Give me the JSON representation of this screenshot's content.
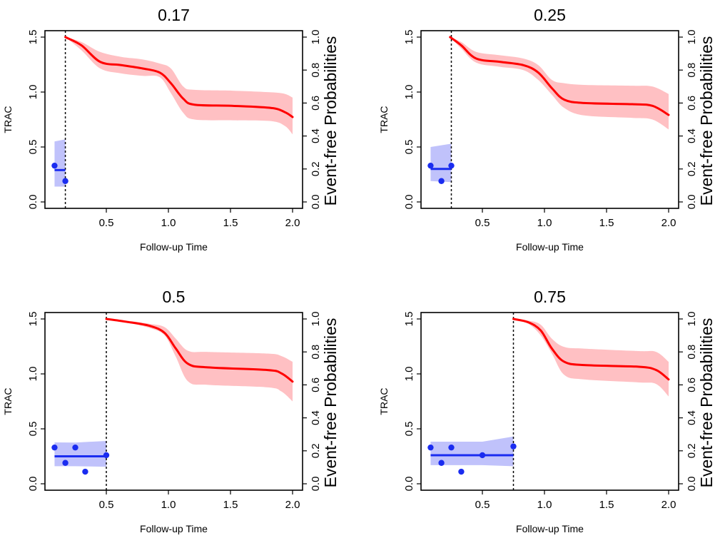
{
  "chart_data": [
    {
      "type": "line",
      "title": "0.17",
      "xlabel": "Follow-up Time",
      "ylabel": "TRAC",
      "y2label": "Event-free Probabilities",
      "xlim": [
        0.0,
        2.08
      ],
      "ylim": [
        0.0,
        1.5
      ],
      "y2lim": [
        0.0,
        1.0
      ],
      "xticks": [
        "0.5",
        "1.0",
        "1.5",
        "2.0"
      ],
      "yticks": [
        "0.0",
        "0.5",
        "1.0",
        "1.5"
      ],
      "y2ticks": [
        "0.0",
        "0.2",
        "0.4",
        "0.6",
        "0.8",
        "1.0"
      ],
      "landmark": 0.17,
      "trac_points": {
        "x": [
          0.083,
          0.17
        ],
        "y": [
          0.33,
          0.19
        ]
      },
      "trac_fit": {
        "x": [
          0.083,
          0.17
        ],
        "y": [
          0.29,
          0.29
        ]
      },
      "trac_band": {
        "x": [
          0.083,
          0.17
        ],
        "lower": [
          0.14,
          0.14
        ],
        "upper": [
          0.55,
          0.57
        ]
      },
      "survival": {
        "x": [
          0.17,
          0.3,
          0.45,
          0.62,
          0.79,
          0.93,
          1.02,
          1.12,
          1.21,
          1.52,
          1.83,
          1.94,
          2.0
        ],
        "y": [
          1.0,
          0.95,
          0.85,
          0.83,
          0.81,
          0.785,
          0.72,
          0.626,
          0.59,
          0.583,
          0.57,
          0.544,
          0.515
        ],
        "upper": [
          1.0,
          0.97,
          0.91,
          0.88,
          0.865,
          0.84,
          0.81,
          0.7,
          0.68,
          0.675,
          0.665,
          0.655,
          0.633
        ],
        "lower": [
          1.0,
          0.92,
          0.81,
          0.78,
          0.765,
          0.757,
          0.66,
          0.54,
          0.5,
          0.495,
          0.49,
          0.46,
          0.41
        ]
      }
    },
    {
      "type": "line",
      "title": "0.25",
      "xlabel": "Follow-up Time",
      "ylabel": "TRAC",
      "y2label": "Event-free Probabilities",
      "xlim": [
        0.0,
        2.08
      ],
      "ylim": [
        0.0,
        1.5
      ],
      "y2lim": [
        0.0,
        1.0
      ],
      "xticks": [
        "0.5",
        "1.0",
        "1.5",
        "2.0"
      ],
      "yticks": [
        "0.0",
        "0.5",
        "1.0",
        "1.5"
      ],
      "y2ticks": [
        "0.0",
        "0.2",
        "0.4",
        "0.6",
        "0.8",
        "1.0"
      ],
      "landmark": 0.25,
      "trac_points": {
        "x": [
          0.083,
          0.17,
          0.25
        ],
        "y": [
          0.33,
          0.19,
          0.33
        ]
      },
      "trac_fit": {
        "x": [
          0.083,
          0.25
        ],
        "y": [
          0.3,
          0.3
        ]
      },
      "trac_band": {
        "x": [
          0.083,
          0.25
        ],
        "lower": [
          0.19,
          0.18
        ],
        "upper": [
          0.5,
          0.53
        ]
      },
      "survival": {
        "x": [
          0.24,
          0.33,
          0.45,
          0.64,
          0.83,
          0.95,
          1.06,
          1.16,
          1.32,
          1.71,
          1.87,
          2.0
        ],
        "y": [
          1.0,
          0.95,
          0.87,
          0.85,
          0.83,
          0.785,
          0.69,
          0.62,
          0.6,
          0.593,
          0.583,
          0.528
        ],
        "upper": [
          1.0,
          0.97,
          0.91,
          0.89,
          0.87,
          0.83,
          0.74,
          0.72,
          0.71,
          0.705,
          0.7,
          0.655
        ],
        "lower": [
          1.0,
          0.93,
          0.845,
          0.82,
          0.8,
          0.74,
          0.65,
          0.57,
          0.525,
          0.51,
          0.5,
          0.44
        ]
      }
    },
    {
      "type": "line",
      "title": "0.5",
      "xlabel": "Follow-up Time",
      "ylabel": "TRAC",
      "y2label": "Event-free Probabilities",
      "xlim": [
        0.0,
        2.08
      ],
      "ylim": [
        0.0,
        1.5
      ],
      "y2lim": [
        0.0,
        1.0
      ],
      "xticks": [
        "0.5",
        "1.0",
        "1.5",
        "2.0"
      ],
      "yticks": [
        "0.0",
        "0.5",
        "1.0",
        "1.5"
      ],
      "y2ticks": [
        "0.0",
        "0.2",
        "0.4",
        "0.6",
        "0.8",
        "1.0"
      ],
      "landmark": 0.5,
      "trac_points": {
        "x": [
          0.083,
          0.17,
          0.25,
          0.33,
          0.5
        ],
        "y": [
          0.33,
          0.19,
          0.33,
          0.11,
          0.26
        ]
      },
      "trac_fit": {
        "x": [
          0.083,
          0.5
        ],
        "y": [
          0.25,
          0.25
        ]
      },
      "trac_band": {
        "x": [
          0.083,
          0.25,
          0.5
        ],
        "lower": [
          0.16,
          0.16,
          0.155
        ],
        "upper": [
          0.377,
          0.375,
          0.39
        ]
      },
      "survival": {
        "x": [
          0.5,
          0.66,
          0.85,
          0.97,
          1.06,
          1.16,
          1.32,
          1.8,
          1.91,
          2.0
        ],
        "y": [
          1.0,
          0.983,
          0.958,
          0.915,
          0.82,
          0.727,
          0.706,
          0.69,
          0.67,
          0.62
        ],
        "upper": [
          1.0,
          0.99,
          0.97,
          0.95,
          0.88,
          0.806,
          0.8,
          0.79,
          0.775,
          0.74
        ],
        "lower": [
          1.0,
          0.98,
          0.945,
          0.9,
          0.77,
          0.62,
          0.6,
          0.585,
          0.56,
          0.5
        ]
      }
    },
    {
      "type": "line",
      "title": "0.75",
      "xlabel": "Follow-up Time",
      "ylabel": "TRAC",
      "y2label": "Event-free Probabilities",
      "xlim": [
        0.0,
        2.08
      ],
      "ylim": [
        0.0,
        1.5
      ],
      "y2lim": [
        0.0,
        1.0
      ],
      "xticks": [
        "0.5",
        "1.0",
        "1.5",
        "2.0"
      ],
      "yticks": [
        "0.0",
        "0.5",
        "1.0",
        "1.5"
      ],
      "y2ticks": [
        "0.0",
        "0.2",
        "0.4",
        "0.6",
        "0.8",
        "1.0"
      ],
      "landmark": 0.75,
      "trac_points": {
        "x": [
          0.083,
          0.17,
          0.25,
          0.33,
          0.5,
          0.75
        ],
        "y": [
          0.33,
          0.19,
          0.33,
          0.11,
          0.26,
          0.34
        ]
      },
      "trac_fit": {
        "x": [
          0.083,
          0.75
        ],
        "y": [
          0.26,
          0.26
        ]
      },
      "trac_band": {
        "x": [
          0.083,
          0.5,
          0.75
        ],
        "lower": [
          0.17,
          0.17,
          0.16
        ],
        "upper": [
          0.383,
          0.383,
          0.43
        ]
      },
      "survival": {
        "x": [
          0.75,
          0.87,
          0.97,
          1.06,
          1.16,
          1.32,
          1.76,
          1.9,
          2.0
        ],
        "y": [
          1.0,
          0.98,
          0.93,
          0.82,
          0.74,
          0.72,
          0.71,
          0.69,
          0.633
        ],
        "upper": [
          1.0,
          0.99,
          0.965,
          0.88,
          0.83,
          0.82,
          0.805,
          0.8,
          0.74
        ],
        "lower": [
          1.0,
          0.97,
          0.9,
          0.79,
          0.66,
          0.633,
          0.615,
          0.605,
          0.53
        ]
      }
    }
  ],
  "colors": {
    "survival_line": "#ff0000",
    "survival_band": "#ffc0c3",
    "trac_line": "#1a2cf0",
    "trac_points": "#1a2cf0",
    "trac_band": "#c0c2fb",
    "landmark_line": "#000000"
  }
}
